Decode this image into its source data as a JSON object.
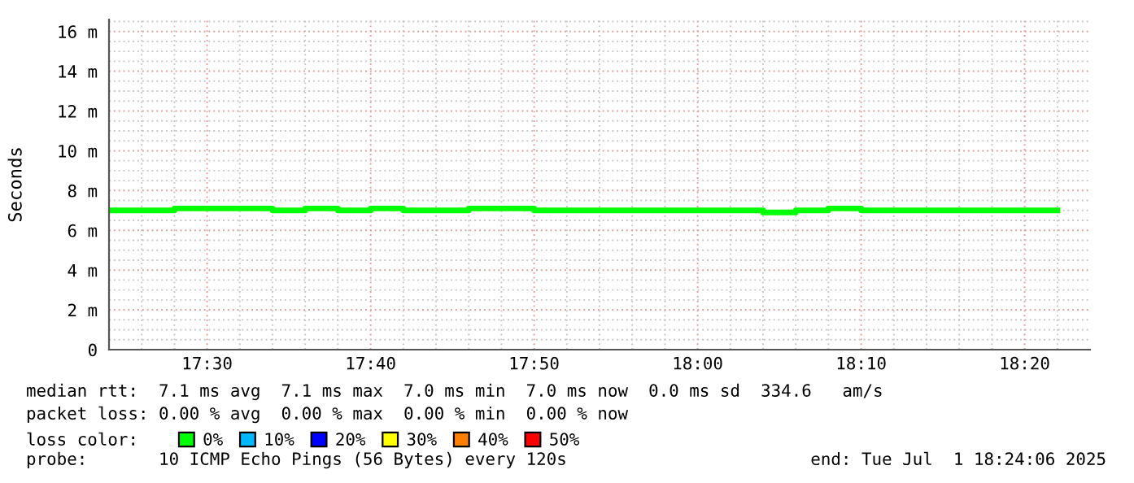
{
  "chart_data": {
    "type": "step",
    "ylabel": "Seconds",
    "legend_title": "loss color:",
    "legend": "bottom",
    "grid": true,
    "line_style": "solid",
    "marker": "none",
    "x": [
      17.4,
      17.4333,
      17.4667,
      17.5,
      17.5333,
      17.5667,
      17.6,
      17.6333,
      17.6667,
      17.7,
      17.7333,
      17.7667,
      17.8,
      17.8333,
      17.8667,
      17.9,
      17.9333,
      17.9667,
      18.0,
      18.0333,
      18.0667,
      18.1,
      18.1333,
      18.1667,
      18.2,
      18.2333,
      18.2667,
      18.3,
      18.3333,
      18.3667
    ],
    "series": [
      {
        "name": "0%",
        "color": "#00ff00",
        "values": [
          7.0,
          7.0,
          7.1,
          7.1,
          7.1,
          7.0,
          7.1,
          7.0,
          7.1,
          7.0,
          7.0,
          7.1,
          7.1,
          7.0,
          7.0,
          7.0,
          7.0,
          7.0,
          7.0,
          7.0,
          6.9,
          7.0,
          7.1,
          7.0,
          7.0,
          7.0,
          7.0,
          7.0,
          7.0,
          7.0
        ]
      },
      {
        "name": "10%",
        "color": "#00b8ff",
        "values": [
          null,
          null,
          null,
          null,
          null,
          null,
          null,
          null,
          null,
          null,
          null,
          null,
          null,
          null,
          null,
          null,
          null,
          null,
          null,
          null,
          null,
          null,
          null,
          null,
          null,
          null,
          null,
          null,
          null,
          null
        ]
      },
      {
        "name": "20%",
        "color": "#0000ff",
        "values": [
          null,
          null,
          null,
          null,
          null,
          null,
          null,
          null,
          null,
          null,
          null,
          null,
          null,
          null,
          null,
          null,
          null,
          null,
          null,
          null,
          null,
          null,
          null,
          null,
          null,
          null,
          null,
          null,
          null,
          null
        ]
      },
      {
        "name": "30%",
        "color": "#ffff00",
        "values": [
          null,
          null,
          null,
          null,
          null,
          null,
          null,
          null,
          null,
          null,
          null,
          null,
          null,
          null,
          null,
          null,
          null,
          null,
          null,
          null,
          null,
          null,
          null,
          null,
          null,
          null,
          null,
          null,
          null,
          null
        ]
      },
      {
        "name": "40%",
        "color": "#ff8000",
        "values": [
          null,
          null,
          null,
          null,
          null,
          null,
          null,
          null,
          null,
          null,
          null,
          null,
          null,
          null,
          null,
          null,
          null,
          null,
          null,
          null,
          null,
          null,
          null,
          null,
          null,
          null,
          null,
          null,
          null,
          null
        ]
      },
      {
        "name": "50%",
        "color": "#ff0000",
        "values": [
          null,
          null,
          null,
          null,
          null,
          null,
          null,
          null,
          null,
          null,
          null,
          null,
          null,
          null,
          null,
          null,
          null,
          null,
          null,
          null,
          null,
          null,
          null,
          null,
          null,
          null,
          null,
          null,
          null,
          null
        ]
      }
    ],
    "xlim": [
      17.4,
      18.4
    ],
    "xticks": [
      {
        "value": 17.4333,
        "label": null
      },
      {
        "value": 17.4667,
        "label": null
      },
      {
        "value": 17.5,
        "label": "17:30"
      },
      {
        "value": 17.5333,
        "label": null
      },
      {
        "value": 17.5667,
        "label": null
      },
      {
        "value": 17.6,
        "label": null
      },
      {
        "value": 17.6333,
        "label": null
      },
      {
        "value": 17.6667,
        "label": "17:40"
      },
      {
        "value": 17.7,
        "label": null
      },
      {
        "value": 17.7333,
        "label": null
      },
      {
        "value": 17.7667,
        "label": null
      },
      {
        "value": 17.8,
        "label": null
      },
      {
        "value": 17.8333,
        "label": "17:50"
      },
      {
        "value": 17.8667,
        "label": null
      },
      {
        "value": 17.9,
        "label": null
      },
      {
        "value": 17.9333,
        "label": null
      },
      {
        "value": 17.9667,
        "label": null
      },
      {
        "value": 18.0,
        "label": "18:00"
      },
      {
        "value": 18.0333,
        "label": null
      },
      {
        "value": 18.0667,
        "label": null
      },
      {
        "value": 18.1,
        "label": null
      },
      {
        "value": 18.1333,
        "label": null
      },
      {
        "value": 18.1667,
        "label": "18:10"
      },
      {
        "value": 18.2,
        "label": null
      },
      {
        "value": 18.2333,
        "label": null
      },
      {
        "value": 18.2667,
        "label": null
      },
      {
        "value": 18.3,
        "label": null
      },
      {
        "value": 18.3333,
        "label": "18:20"
      },
      {
        "value": 18.3667,
        "label": null
      }
    ],
    "ylim": [
      0,
      16.6
    ],
    "yticks": [
      0,
      {
        "value": 2,
        "label": "2 m"
      },
      {
        "value": 4,
        "label": "4 m"
      },
      {
        "value": 6,
        "label": "6 m"
      },
      {
        "value": 8,
        "label": "8 m"
      },
      {
        "value": 10,
        "label": "10 m"
      },
      {
        "value": 12,
        "label": "12 m"
      },
      {
        "value": 14,
        "label": "14 m"
      },
      {
        "value": 16,
        "label": "16 m"
      },
      {
        "value": 0.5,
        "label": null
      },
      {
        "value": 1,
        "label": null
      },
      {
        "value": 1.5,
        "label": null
      },
      {
        "value": 2.5,
        "label": null
      },
      {
        "value": 3,
        "label": null
      },
      {
        "value": 3.5,
        "label": null
      },
      {
        "value": 4.5,
        "label": null
      },
      {
        "value": 5,
        "label": null
      },
      {
        "value": 5.5,
        "label": null
      },
      {
        "value": 6.5,
        "label": null
      },
      {
        "value": 7,
        "label": null
      },
      {
        "value": 7.5,
        "label": null
      },
      {
        "value": 8.5,
        "label": null
      },
      {
        "value": 9,
        "label": null
      },
      {
        "value": 9.5,
        "label": null
      },
      {
        "value": 10.5,
        "label": null
      },
      {
        "value": 11,
        "label": null
      },
      {
        "value": 11.5,
        "label": null
      },
      {
        "value": 12.5,
        "label": null
      },
      {
        "value": 13,
        "label": null
      },
      {
        "value": 13.5,
        "label": null
      },
      {
        "value": 14.5,
        "label": null
      },
      {
        "value": 15,
        "label": null
      },
      {
        "value": 15.5,
        "label": null
      },
      {
        "value": 16.5,
        "label": null
      }
    ],
    "annotations": [
      "median rtt:  7.1 ms avg  7.1 ms max  7.0 ms min  7.0 ms now  0.0 ms sd  334.6   am/s",
      "packet loss: 0.00 % avg  0.00 % max  0.00 % min  0.00 % now",
      "probe:       10 ICMP Echo Pings (56 Bytes) every 120s",
      "end: Tue Jul  1 18:24:06 2025"
    ]
  }
}
